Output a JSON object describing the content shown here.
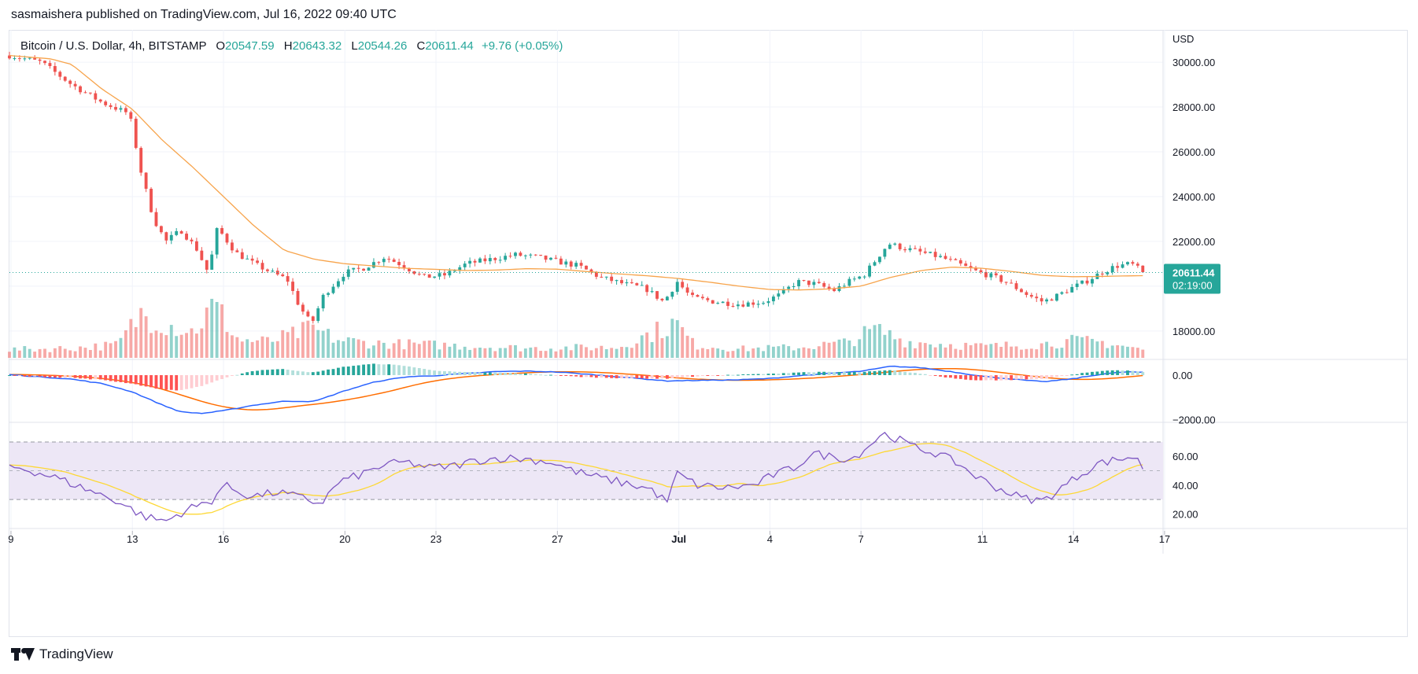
{
  "header": {
    "publisher": "sasmaishera published on TradingView.com, Jul 16, 2022 09:40 UTC"
  },
  "legend": {
    "symbol": "Bitcoin / U.S. Dollar, 4h, BITSTAMP",
    "o_label": "O",
    "o": "20547.59",
    "h_label": "H",
    "h": "20643.32",
    "l_label": "L",
    "l": "20544.26",
    "c_label": "C",
    "c": "20611.44",
    "change": "+9.76 (+0.05%)"
  },
  "price_tag": {
    "price": "20611.44",
    "countdown": "02:19:00"
  },
  "footer": {
    "brand": "TradingView"
  },
  "colors": {
    "up": "#26a69a",
    "down": "#ef5350",
    "ma": "#f7a44c",
    "macd": "#2962ff",
    "signal": "#ff6d00",
    "rsi": "#7e57c2",
    "rsi_ma": "#fdd835",
    "rsi_band": "#ede7f6",
    "price_tag": "#26a69a"
  },
  "chart_data": {
    "type": "candlestick",
    "price_axis": {
      "unit": "USD",
      "ticks": [
        18000,
        20000,
        22000,
        24000,
        26000,
        28000,
        30000
      ],
      "range": [
        16800,
        30600
      ]
    },
    "macd_axis": {
      "ticks": [
        0,
        -2000
      ],
      "tick_labels": [
        "0.00",
        "−2000.00"
      ],
      "range": [
        -2050,
        600
      ]
    },
    "rsi_axis": {
      "ticks": [
        20,
        40,
        60
      ],
      "tick_labels": [
        "20.00",
        "40.00",
        "60.00"
      ],
      "range": [
        12,
        82
      ],
      "band": [
        30,
        70
      ],
      "mid": 50
    },
    "x_axis": {
      "labels": [
        "9",
        "13",
        "16",
        "20",
        "23",
        "27",
        "Jul",
        "4",
        "7",
        "11",
        "14",
        "17"
      ],
      "label_days": [
        9,
        13,
        16,
        20,
        23,
        27,
        31,
        34,
        37,
        41,
        44,
        47
      ]
    },
    "start_day": 8.95,
    "bars_per_day": 6,
    "close_anchors": [
      [
        8.95,
        30300
      ],
      [
        10.0,
        30000
      ],
      [
        11.0,
        29000
      ],
      [
        12.0,
        28200
      ],
      [
        12.9,
        27700
      ],
      [
        13.3,
        25000
      ],
      [
        13.7,
        23000
      ],
      [
        14.1,
        22000
      ],
      [
        14.6,
        22500
      ],
      [
        15.1,
        21700
      ],
      [
        15.5,
        20600
      ],
      [
        15.8,
        22600
      ],
      [
        16.4,
        21500
      ],
      [
        17.0,
        21000
      ],
      [
        17.6,
        20600
      ],
      [
        18.1,
        20300
      ],
      [
        18.5,
        19100
      ],
      [
        18.9,
        18300
      ],
      [
        19.3,
        19600
      ],
      [
        20.0,
        20600
      ],
      [
        20.6,
        20800
      ],
      [
        21.3,
        21300
      ],
      [
        21.8,
        21000
      ],
      [
        22.6,
        20400
      ],
      [
        23.3,
        20500
      ],
      [
        24.0,
        21000
      ],
      [
        24.8,
        21200
      ],
      [
        25.6,
        21400
      ],
      [
        26.3,
        21300
      ],
      [
        27.0,
        21100
      ],
      [
        27.7,
        20900
      ],
      [
        28.4,
        20400
      ],
      [
        29.2,
        20100
      ],
      [
        29.9,
        19900
      ],
      [
        30.5,
        19300
      ],
      [
        30.95,
        20200
      ],
      [
        31.4,
        19500
      ],
      [
        32.2,
        19300
      ],
      [
        33.0,
        19200
      ],
      [
        33.8,
        19300
      ],
      [
        34.3,
        19600
      ],
      [
        34.9,
        20200
      ],
      [
        35.5,
        20100
      ],
      [
        36.1,
        19800
      ],
      [
        36.6,
        20200
      ],
      [
        37.1,
        20500
      ],
      [
        37.5,
        21200
      ],
      [
        37.9,
        21900
      ],
      [
        38.4,
        21700
      ],
      [
        39.0,
        21500
      ],
      [
        39.6,
        21300
      ],
      [
        40.2,
        21000
      ],
      [
        40.7,
        20700
      ],
      [
        41.4,
        20400
      ],
      [
        41.9,
        20100
      ],
      [
        42.5,
        19600
      ],
      [
        43.0,
        19300
      ],
      [
        43.5,
        19600
      ],
      [
        43.9,
        19900
      ],
      [
        44.4,
        20200
      ],
      [
        44.9,
        20600
      ],
      [
        45.4,
        20900
      ],
      [
        45.9,
        21000
      ],
      [
        46.3,
        20611
      ]
    ],
    "ma_anchors": [
      [
        8.95,
        30300
      ],
      [
        10.3,
        30150
      ],
      [
        11.0,
        29900
      ],
      [
        12.0,
        28800
      ],
      [
        13.0,
        27900
      ],
      [
        14.0,
        26500
      ],
      [
        15.0,
        25300
      ],
      [
        16.0,
        24000
      ],
      [
        17.0,
        22700
      ],
      [
        18.0,
        21600
      ],
      [
        19.0,
        21200
      ],
      [
        20.0,
        21000
      ],
      [
        21.0,
        20900
      ],
      [
        22.0,
        20800
      ],
      [
        23.0,
        20750
      ],
      [
        24.0,
        20700
      ],
      [
        25.0,
        20720
      ],
      [
        26.0,
        20780
      ],
      [
        27.0,
        20760
      ],
      [
        28.0,
        20650
      ],
      [
        29.0,
        20550
      ],
      [
        30.0,
        20460
      ],
      [
        31.0,
        20340
      ],
      [
        32.0,
        20180
      ],
      [
        33.0,
        20000
      ],
      [
        34.0,
        19850
      ],
      [
        35.0,
        19830
      ],
      [
        36.0,
        19880
      ],
      [
        37.0,
        20000
      ],
      [
        38.0,
        20400
      ],
      [
        39.0,
        20700
      ],
      [
        40.0,
        20850
      ],
      [
        41.0,
        20800
      ],
      [
        42.0,
        20650
      ],
      [
        43.0,
        20480
      ],
      [
        44.0,
        20420
      ],
      [
        45.0,
        20440
      ],
      [
        45.8,
        20460
      ],
      [
        46.3,
        20470
      ]
    ],
    "volume_anchors": [
      [
        8.95,
        1.0
      ],
      [
        11.0,
        1.2
      ],
      [
        12.5,
        1.6
      ],
      [
        13.3,
        5.5
      ],
      [
        14.3,
        4.0
      ],
      [
        15.0,
        3.2
      ],
      [
        15.7,
        6.5
      ],
      [
        16.5,
        2.2
      ],
      [
        17.5,
        2.0
      ],
      [
        18.4,
        3.0
      ],
      [
        18.9,
        3.6
      ],
      [
        19.8,
        2.2
      ],
      [
        21.0,
        1.8
      ],
      [
        23.0,
        1.6
      ],
      [
        26.0,
        1.2
      ],
      [
        29.0,
        1.3
      ],
      [
        30.9,
        4.3
      ],
      [
        31.5,
        1.6
      ],
      [
        33.0,
        1.1
      ],
      [
        35.0,
        1.3
      ],
      [
        36.5,
        1.9
      ],
      [
        37.5,
        3.5
      ],
      [
        38.5,
        2.0
      ],
      [
        41.0,
        1.4
      ],
      [
        43.0,
        1.7
      ],
      [
        44.0,
        2.1
      ],
      [
        45.0,
        1.9
      ],
      [
        46.3,
        1.0
      ]
    ],
    "rsi_anchors": [
      [
        8.95,
        53
      ],
      [
        9.5,
        51
      ],
      [
        10.5,
        45
      ],
      [
        11.5,
        37
      ],
      [
        12.5,
        29
      ],
      [
        13.4,
        18
      ],
      [
        14.1,
        15
      ],
      [
        14.8,
        23
      ],
      [
        15.6,
        29
      ],
      [
        16.0,
        40
      ],
      [
        16.9,
        32
      ],
      [
        17.8,
        35
      ],
      [
        18.6,
        31
      ],
      [
        19.2,
        27
      ],
      [
        19.8,
        42
      ],
      [
        20.6,
        48
      ],
      [
        21.3,
        54
      ],
      [
        22.0,
        56
      ],
      [
        22.8,
        52
      ],
      [
        23.5,
        53
      ],
      [
        24.3,
        57
      ],
      [
        25.2,
        59
      ],
      [
        26.0,
        58
      ],
      [
        26.8,
        56
      ],
      [
        27.5,
        50
      ],
      [
        28.4,
        45
      ],
      [
        29.3,
        41
      ],
      [
        30.1,
        37
      ],
      [
        30.6,
        28
      ],
      [
        30.95,
        48
      ],
      [
        31.6,
        40
      ],
      [
        32.5,
        38
      ],
      [
        33.5,
        40
      ],
      [
        34.1,
        47
      ],
      [
        34.8,
        52
      ],
      [
        35.4,
        62
      ],
      [
        36.0,
        60
      ],
      [
        36.7,
        58
      ],
      [
        37.3,
        68
      ],
      [
        37.7,
        76
      ],
      [
        38.2,
        72
      ],
      [
        38.8,
        66
      ],
      [
        39.5,
        62
      ],
      [
        40.2,
        55
      ],
      [
        40.8,
        46
      ],
      [
        41.5,
        38
      ],
      [
        42.3,
        31
      ],
      [
        43.0,
        29
      ],
      [
        43.6,
        38
      ],
      [
        44.2,
        47
      ],
      [
        44.8,
        55
      ],
      [
        45.5,
        58
      ],
      [
        46.0,
        60
      ],
      [
        46.3,
        52
      ]
    ],
    "macd_anchors": [
      [
        8.95,
        20
      ],
      [
        10.0,
        -80
      ],
      [
        11.0,
        -180
      ],
      [
        12.0,
        -380
      ],
      [
        13.0,
        -750
      ],
      [
        14.0,
        -1350
      ],
      [
        14.6,
        -1650
      ],
      [
        15.3,
        -1720
      ],
      [
        16.0,
        -1600
      ],
      [
        17.0,
        -1350
      ],
      [
        18.0,
        -1170
      ],
      [
        19.0,
        -1180
      ],
      [
        20.0,
        -700
      ],
      [
        21.0,
        -300
      ],
      [
        22.0,
        -80
      ],
      [
        23.0,
        -20
      ],
      [
        24.0,
        70
      ],
      [
        25.0,
        160
      ],
      [
        26.0,
        180
      ],
      [
        27.0,
        140
      ],
      [
        28.0,
        40
      ],
      [
        29.0,
        -70
      ],
      [
        30.0,
        -190
      ],
      [
        30.6,
        -260
      ],
      [
        31.5,
        -240
      ],
      [
        33.0,
        -210
      ],
      [
        34.0,
        -150
      ],
      [
        35.0,
        -20
      ],
      [
        36.0,
        80
      ],
      [
        37.0,
        170
      ],
      [
        38.0,
        400
      ],
      [
        39.0,
        330
      ],
      [
        40.0,
        150
      ],
      [
        41.0,
        -50
      ],
      [
        42.0,
        -180
      ],
      [
        43.0,
        -300
      ],
      [
        44.0,
        -160
      ],
      [
        45.0,
        60
      ],
      [
        45.8,
        150
      ],
      [
        46.3,
        120
      ]
    ],
    "signal_lag_bars": 9,
    "signal_smoothing_bars": 9,
    "rsi_ma_bars": 14
  }
}
